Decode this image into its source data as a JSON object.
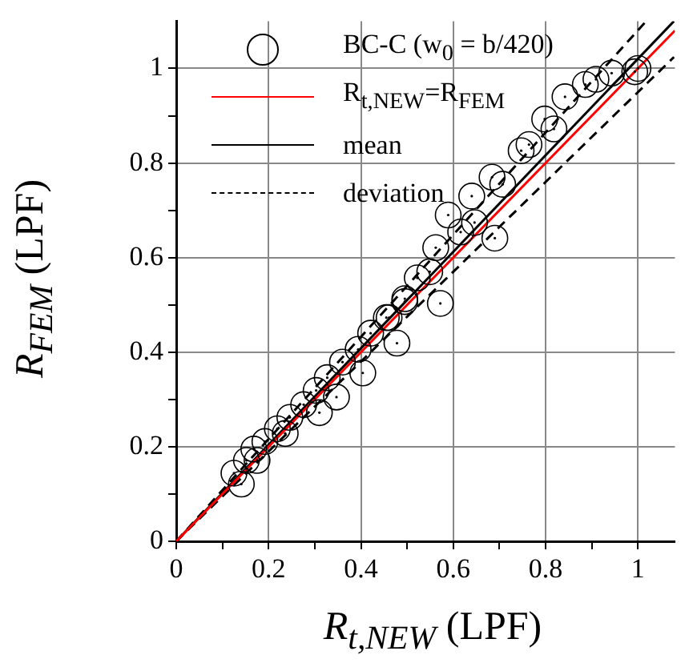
{
  "chart_data": {
    "type": "scatter",
    "xlabel": "R$_{t,NEW}$ (LPF)",
    "ylabel": "R$_{FEM}$ (LPF)",
    "xlim": [
      0,
      1.08
    ],
    "ylim": [
      0,
      1.1
    ],
    "xticks": [
      0,
      {
        "value": 0.1,
        "label": null
      },
      0.2,
      {
        "value": 0.3,
        "label": null
      },
      0.4,
      {
        "value": 0.5,
        "label": null
      },
      0.6,
      {
        "value": 0.7,
        "label": null
      },
      0.8,
      {
        "value": 0.9,
        "label": null
      },
      1
    ],
    "yticks": [
      0,
      {
        "value": 0.1,
        "label": null
      },
      0.2,
      {
        "value": 0.3,
        "label": null
      },
      0.4,
      {
        "value": 0.5,
        "label": null
      },
      0.6,
      {
        "value": 0.7,
        "label": null
      },
      0.8,
      {
        "value": 0.9,
        "label": null
      },
      1
    ],
    "grid": true,
    "legend": "top left",
    "series": [
      {
        "name": "BC-C (w$_{0}$ = b/420)",
        "color": "#000000",
        "marker": "circle",
        "x": [
          0.125,
          0.141,
          0.152,
          0.175,
          0.168,
          0.192,
          0.219,
          0.236,
          0.246,
          0.276,
          0.31,
          0.303,
          0.327,
          0.36,
          0.394,
          0.421,
          0.455,
          0.495,
          0.404,
          0.347,
          0.478,
          0.461,
          0.495,
          0.522,
          0.549,
          0.562,
          0.572,
          0.589,
          0.616,
          0.646,
          0.64,
          0.69,
          0.684,
          0.707,
          0.747,
          0.764,
          0.798,
          0.818,
          0.842,
          0.886,
          0.909,
          0.943,
          0.993,
          1.0
        ],
        "values": [
          0.144,
          0.121,
          0.171,
          0.171,
          0.195,
          0.211,
          0.238,
          0.228,
          0.262,
          0.289,
          0.272,
          0.319,
          0.346,
          0.379,
          0.406,
          0.44,
          0.473,
          0.507,
          0.356,
          0.305,
          0.419,
          0.473,
          0.513,
          0.557,
          0.57,
          0.621,
          0.503,
          0.69,
          0.654,
          0.674,
          0.73,
          0.641,
          0.77,
          0.755,
          0.826,
          0.839,
          0.893,
          0.872,
          0.94,
          0.966,
          0.977,
          0.99,
          0.993,
          1.0
        ]
      },
      {
        "name": "R$_{t,NEW}$=R$_{FEM}$",
        "type": "line",
        "color": "#ff0000",
        "line_style": "solid",
        "marker": "none",
        "x": [
          0,
          1.08
        ],
        "values": [
          0,
          1.08
        ]
      },
      {
        "name": "mean",
        "type": "line",
        "color": "#000000",
        "line_style": "solid",
        "marker": "none",
        "x": [
          0,
          1.078
        ],
        "values": [
          0,
          1.1
        ]
      },
      {
        "name": "deviation",
        "type": "line",
        "color": "#000000",
        "line_style": "dashed",
        "marker": "none",
        "x": [
          0,
          1.018
        ],
        "values": [
          0,
          1.1
        ]
      },
      {
        "type": "line",
        "color": "#000000",
        "line_style": "dashed",
        "marker": "none",
        "x": [
          0,
          1.078
        ],
        "values": [
          0,
          1.024
        ]
      }
    ]
  }
}
